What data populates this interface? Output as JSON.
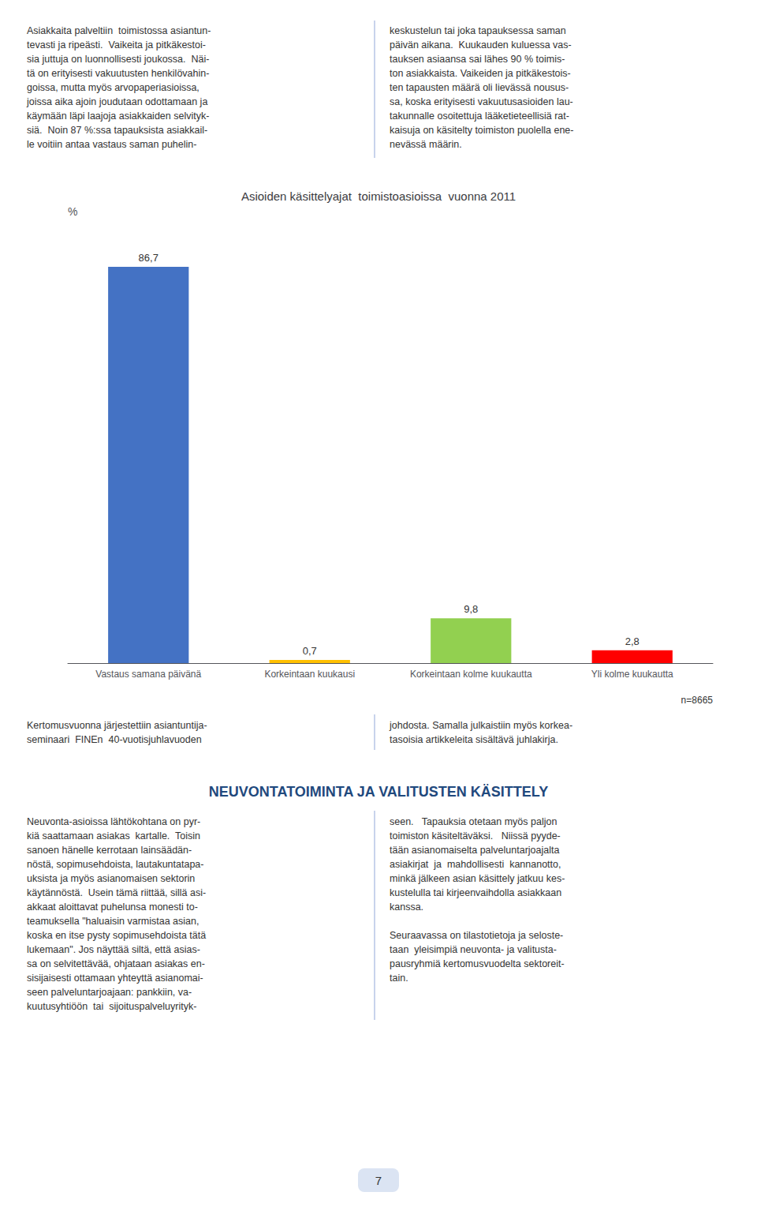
{
  "chart_data": {
    "type": "bar",
    "title": "Asioiden käsittelyajat  toimistoasioissa  vuonna 2011",
    "categories": [
      "Vastaus samana päivänä",
      "Korkeintaan kuukausi",
      "Korkeintaan kolme kuukautta",
      "Yli kolme kuukautta"
    ],
    "values": [
      86.7,
      0.7,
      9.8,
      2.8
    ],
    "value_labels": [
      "86,7",
      "0,7",
      "9,8",
      "2,8"
    ],
    "colors": [
      "#4472C4",
      "#FFC000",
      "#92D050",
      "#FF0000"
    ],
    "ylabel": "%",
    "ylim": [
      0,
      95
    ],
    "tick_labels": "x",
    "grid": false,
    "data_labels": true,
    "annotations": [
      "n=8665",
      "Asiakkaita palveltiin  toimistossa asiantun-\ntevasti ja ripeästi.  Vaikeita ja pitkäkestoi-\nsia juttuja on luonnollisesti joukossa.  Näi-\ntä on erityisesti vakuutusten henkilövahin-\ngoissa, mutta myös arvopaperiasioissa,\njoissa aika ajoin joudutaan odottamaan ja\nkäymään läpi laajoja asiakkaiden selvityk-\nsiä.  Noin 87 %:ssa tapauksista asiakkail-\nle voitiin antaa vastaus saman puhelin-",
      "keskustelun tai joka tapauksessa saman\npäivän aikana.  Kuukauden kuluessa vas-\ntauksen asiaansa sai lähes 90 % toimis-\nton asiakkaista. Vaikeiden ja pitkäkestois-\nten tapausten määrä oli lievässä nousus-\nsa, koska erityisesti vakuutusasioiden lau-\ntakunnalle osoitettuja lääketieteellisiä rat-\nkaisuja on käsitelty toimiston puolella ene-\nnevässä määrin.",
      "Kertomusvuonna järjestettiin asiantuntija-\nseminaari  FINEn  40-vuotisjuhlavuoden",
      "johdosta. Samalla julkaistiin myös korkea-\ntasoisia artikkeleita sisältävä juhlakirja.",
      "NEUVONTATOIMINTA JA VALITUSTEN KÄSITTELY",
      "Neuvonta-asioissa lähtökohtana on pyr-\nkiä saattamaan asiakas  kartalle.  Toisin\nsanoen hänelle kerrotaan lainsäädän-\nnöstä, sopimusehdoista, lautakuntatapa-\nuksista ja myös asianomaisen sektorin\nkäytännöstä.  Usein tämä riittää, sillä asi-\nakkaat aloittavat puhelunsa monesti to-\nteamuksella \"haluaisin varmistaa asian,\nkoska en itse pysty sopimusehdoista tätä\nlukemaan\". Jos näyttää siltä, että asias-\nsa on selvitettävää, ohjataan asiakas en-\nsisijaisesti ottamaan yhteyttä asianomai-\nseen palveluntarjoajaan: pankkiin, va-\nkuutusyhtiöön  tai  sijoituspalveluyrityk-",
      "seen.   Tapauksia otetaan myös paljon\ntoimiston käsiteltäväksi.   Niissä pyyde-\ntään asianomaiselta palveluntarjoajalta\nasiakirjat  ja  mahdollisesti  kannanotto,\nminkä jälkeen asian käsittely jatkuu kes-\nkustelulla tai kirjeenvaihdolla asiakkaan\nkanssa.\n\nSeuraavassa on tilastotietoja ja seloste-\ntaan  yleisimpiä neuvonta- ja valitusta-\npausryhmiä kertomusvuodelta sektoreit-\ntain.",
      "7"
    ]
  }
}
